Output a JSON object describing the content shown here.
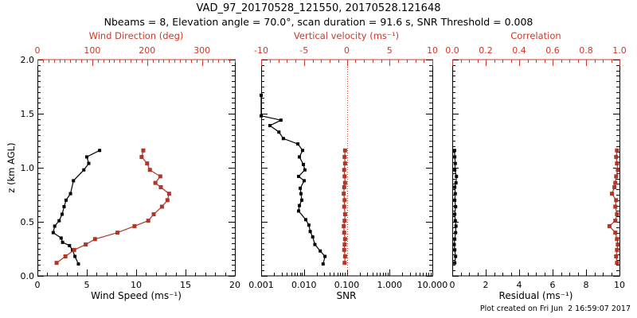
{
  "header": {
    "title": "VAD_97_20170528_121550, 20170528.121648",
    "subtitle": "Nbeams = 8, Elevation angle = 70.0°, scan duration = 91.6 s, SNR Threshold = 0.008"
  },
  "footer": {
    "created": "Plot created on Fri Jun  2 16:59:07 2017"
  },
  "colors": {
    "axis_red": "#cc392a",
    "series_red": "#b23526",
    "black": "#000000"
  },
  "chart_data": {
    "type": "line",
    "title": "VAD_97_20170528_121550, 20170528.121648",
    "y_axis": {
      "label": "z (km AGL)",
      "min": 0,
      "max": 2,
      "majors": [
        0,
        0.5,
        1,
        1.5,
        2
      ],
      "major_labels": [
        "0.0",
        "0.5",
        "1.0",
        "1.5",
        "2.0"
      ],
      "minor_step": 0.05
    },
    "panels": [
      {
        "name": "wind",
        "bottom_axis": {
          "label": "Wind Speed (ms⁻¹)",
          "scale": "linear",
          "min": 0,
          "max": 20,
          "majors": [
            0,
            5,
            10,
            15,
            20
          ],
          "major_labels": [
            "0",
            "5",
            "10",
            "15",
            "20"
          ],
          "minor_step": 1
        },
        "top_axis": {
          "label": "Wind Direction (deg)",
          "scale": "linear",
          "min": 0,
          "max": 360,
          "majors": [
            0,
            100,
            200,
            300
          ],
          "major_labels": [
            "0",
            "100",
            "200",
            "300"
          ],
          "minor_step": 10
        },
        "series": [
          {
            "name": "wind_speed",
            "axis": "bottom",
            "color": "black",
            "z": [
              0.11,
              0.18,
              0.24,
              0.28,
              0.31,
              0.35,
              0.4,
              0.46,
              0.51,
              0.57,
              0.64,
              0.7,
              0.76,
              0.88,
              0.98,
              1.04,
              1.1,
              1.16
            ],
            "values": [
              4.15,
              3.8,
              3.55,
              3.25,
              2.55,
              2.4,
              1.6,
              1.75,
              2.2,
              2.5,
              2.7,
              2.9,
              3.35,
              3.65,
              4.7,
              5.2,
              5.0,
              6.3
            ]
          },
          {
            "name": "wind_direction",
            "axis": "top",
            "color": "red",
            "z": [
              0.12,
              0.18,
              0.24,
              0.29,
              0.34,
              0.4,
              0.46,
              0.51,
              0.57,
              0.64,
              0.7,
              0.76,
              0.82,
              0.86,
              0.92,
              0.98,
              1.04,
              1.1,
              1.16
            ],
            "values": [
              35,
              51,
              67,
              88,
              105,
              146,
              177,
              202,
              212,
              227,
              237,
              240,
              225,
              215,
              224,
              205,
              200,
              190,
              193
            ]
          }
        ]
      },
      {
        "name": "snr-vv",
        "bottom_axis": {
          "label": "SNR",
          "scale": "log",
          "min": 0.001,
          "max": 10,
          "majors": [
            0.001,
            0.01,
            0.1,
            1,
            10
          ],
          "major_labels": [
            "0.001",
            "0.010",
            "0.100",
            "1.000",
            "10.000"
          ]
        },
        "top_axis": {
          "label": "Vertical velocity (ms⁻¹)",
          "scale": "linear",
          "min": -10,
          "max": 10,
          "majors": [
            -10,
            -5,
            0,
            5,
            10
          ],
          "major_labels": [
            "-10",
            "-5",
            "0",
            "5",
            "10"
          ],
          "minor_step": 1
        },
        "reference_line": {
          "axis": "top",
          "value": 0,
          "style": "dotted",
          "color": "red"
        },
        "series": [
          {
            "name": "snr",
            "axis": "bottom",
            "color": "black",
            "z": [
              0.11,
              0.18,
              0.23,
              0.29,
              0.36,
              0.41,
              0.47,
              0.52,
              0.6,
              0.65,
              0.7,
              0.76,
              0.81,
              0.88,
              0.92,
              0.98,
              1.03,
              1.1,
              1.16,
              1.22,
              1.27,
              1.33,
              1.39,
              1.44,
              1.48,
              1.67
            ],
            "values": [
              0.028,
              0.031,
              0.024,
              0.018,
              0.016,
              0.014,
              0.013,
              0.011,
              0.0075,
              0.0078,
              0.0089,
              0.0085,
              0.0082,
              0.0101,
              0.0075,
              0.0105,
              0.0097,
              0.0078,
              0.0093,
              0.0072,
              0.0033,
              0.0026,
              0.0016,
              0.0029,
              0.001,
              0.001
            ]
          },
          {
            "name": "vertical_velocity",
            "axis": "top",
            "color": "red",
            "z": [
              0.12,
              0.18,
              0.24,
              0.29,
              0.34,
              0.4,
              0.46,
              0.51,
              0.57,
              0.64,
              0.7,
              0.76,
              0.82,
              0.86,
              0.92,
              0.98,
              1.04,
              1.1,
              1.16
            ],
            "values": [
              -0.25,
              -0.2,
              -0.3,
              -0.25,
              -0.2,
              -0.3,
              -0.35,
              -0.25,
              -0.2,
              -0.3,
              -0.25,
              -0.35,
              -0.3,
              -0.2,
              -0.25,
              -0.3,
              -0.2,
              -0.25,
              -0.2
            ]
          }
        ]
      },
      {
        "name": "residual-corr",
        "bottom_axis": {
          "label": "Residual (ms⁻¹)",
          "scale": "linear",
          "min": 0,
          "max": 10,
          "majors": [
            0,
            2,
            4,
            6,
            8,
            10
          ],
          "major_labels": [
            "0",
            "2",
            "4",
            "6",
            "8",
            "10"
          ],
          "minor_step": 0.5
        },
        "top_axis": {
          "label": "Correlation",
          "scale": "linear",
          "min": 0,
          "max": 1,
          "majors": [
            0,
            0.2,
            0.4,
            0.6,
            0.8,
            1
          ],
          "major_labels": [
            "0.0",
            "0.2",
            "0.4",
            "0.6",
            "0.8",
            "1.0"
          ],
          "minor_step": 0.05
        },
        "series": [
          {
            "name": "residual",
            "axis": "bottom",
            "color": "black",
            "z": [
              0.12,
              0.18,
              0.24,
              0.29,
              0.34,
              0.4,
              0.46,
              0.51,
              0.57,
              0.64,
              0.7,
              0.76,
              0.82,
              0.86,
              0.92,
              0.98,
              1.04,
              1.1,
              1.16
            ],
            "values": [
              0.15,
              0.2,
              0.15,
              0.12,
              0.15,
              0.2,
              0.22,
              0.18,
              0.15,
              0.2,
              0.15,
              0.18,
              0.15,
              0.22,
              0.25,
              0.15,
              0.18,
              0.15,
              0.14
            ]
          },
          {
            "name": "correlation",
            "axis": "top",
            "color": "red",
            "z": [
              0.12,
              0.18,
              0.24,
              0.29,
              0.34,
              0.4,
              0.46,
              0.51,
              0.57,
              0.64,
              0.7,
              0.76,
              0.82,
              0.86,
              0.92,
              0.98,
              1.04,
              1.1,
              1.16
            ],
            "values": [
              0.985,
              0.98,
              0.985,
              0.99,
              0.985,
              0.975,
              0.94,
              0.975,
              0.985,
              0.975,
              0.98,
              0.955,
              0.97,
              0.975,
              0.98,
              0.99,
              0.985,
              0.98,
              0.985
            ]
          }
        ]
      }
    ]
  }
}
